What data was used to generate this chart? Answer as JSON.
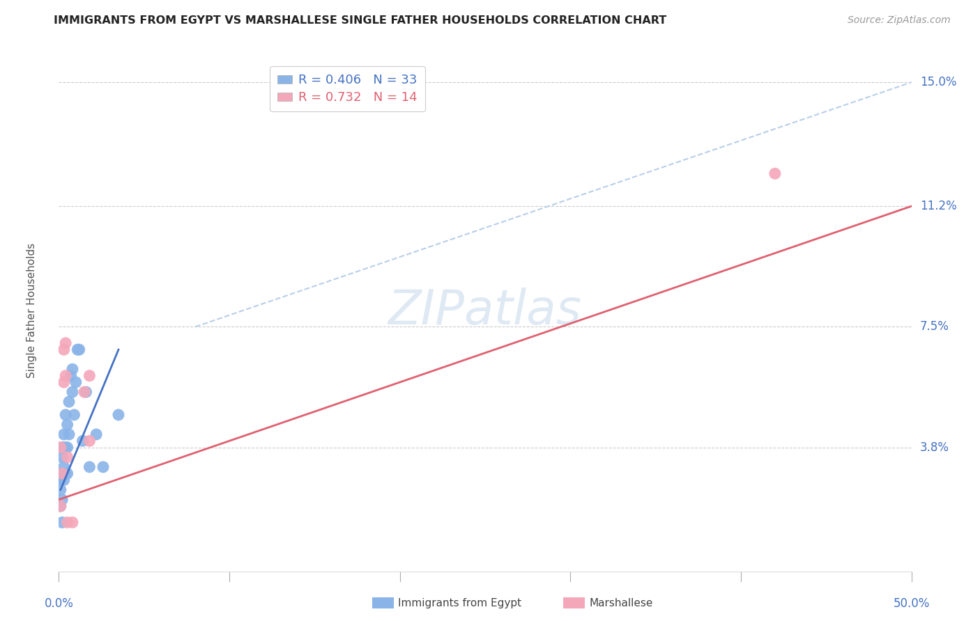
{
  "title": "IMMIGRANTS FROM EGYPT VS MARSHALLESE SINGLE FATHER HOUSEHOLDS CORRELATION CHART",
  "source": "Source: ZipAtlas.com",
  "ylabel": "Single Father Households",
  "xlim": [
    0.0,
    0.5
  ],
  "ylim": [
    0.0,
    0.16
  ],
  "yticks": [
    0.038,
    0.075,
    0.112,
    0.15
  ],
  "ytick_labels": [
    "3.8%",
    "7.5%",
    "11.2%",
    "15.0%"
  ],
  "color_blue": "#8ab4e8",
  "color_pink": "#f4a7b9",
  "color_blue_line": "#4472c4",
  "color_pink_line": "#e06070",
  "color_dashed": "#b8cfe8",
  "color_axis": "#4472c4",
  "color_grid": "#cccccc",
  "watermark_color": "#b8cfe8",
  "blue_scatter_x": [
    0.001,
    0.001,
    0.001,
    0.002,
    0.002,
    0.002,
    0.002,
    0.002,
    0.003,
    0.003,
    0.003,
    0.003,
    0.004,
    0.004,
    0.004,
    0.005,
    0.005,
    0.005,
    0.006,
    0.006,
    0.007,
    0.008,
    0.008,
    0.009,
    0.01,
    0.011,
    0.012,
    0.014,
    0.016,
    0.018,
    0.022,
    0.026,
    0.035
  ],
  "blue_scatter_y": [
    0.02,
    0.025,
    0.028,
    0.015,
    0.022,
    0.03,
    0.035,
    0.038,
    0.028,
    0.032,
    0.038,
    0.042,
    0.03,
    0.038,
    0.048,
    0.03,
    0.038,
    0.045,
    0.042,
    0.052,
    0.06,
    0.055,
    0.062,
    0.048,
    0.058,
    0.068,
    0.068,
    0.04,
    0.055,
    0.032,
    0.042,
    0.032,
    0.048
  ],
  "pink_scatter_x": [
    0.001,
    0.001,
    0.002,
    0.003,
    0.003,
    0.004,
    0.004,
    0.005,
    0.005,
    0.008,
    0.015,
    0.018,
    0.018,
    0.42
  ],
  "pink_scatter_y": [
    0.02,
    0.038,
    0.03,
    0.058,
    0.068,
    0.06,
    0.07,
    0.035,
    0.015,
    0.015,
    0.055,
    0.06,
    0.04,
    0.122
  ],
  "blue_line_x": [
    0.001,
    0.035
  ],
  "blue_line_y": [
    0.025,
    0.068
  ],
  "pink_line_x": [
    0.0,
    0.5
  ],
  "pink_line_y": [
    0.022,
    0.112
  ],
  "dashed_line_x": [
    0.08,
    0.5
  ],
  "dashed_line_y": [
    0.075,
    0.15
  ],
  "legend_blue_label": "R = 0.406   N = 33",
  "legend_pink_label": "R = 0.732   N = 14",
  "bottom_legend_blue": "Immigrants from Egypt",
  "bottom_legend_pink": "Marshallese"
}
